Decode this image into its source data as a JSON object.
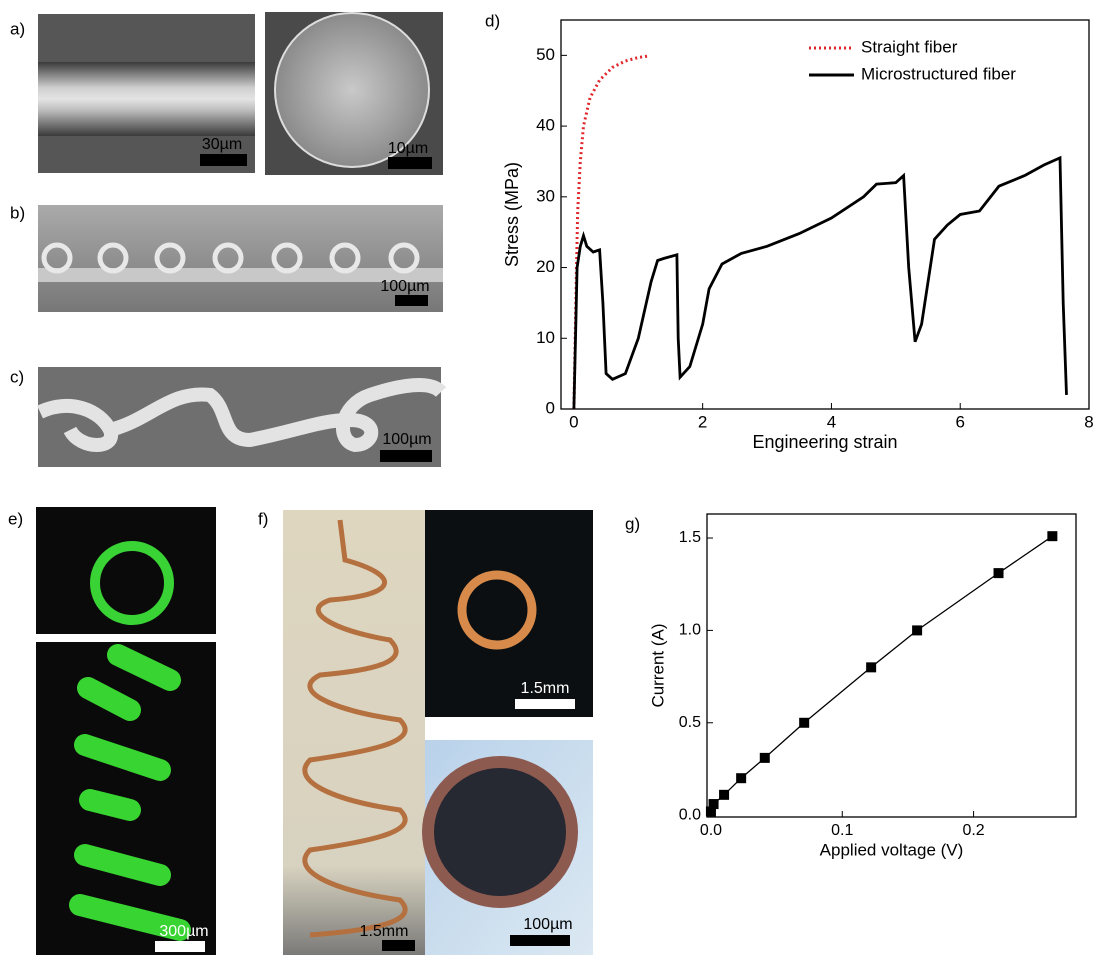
{
  "panels": {
    "a": {
      "label": "a)",
      "scale_left": "30µm",
      "scale_right": "10µm"
    },
    "b": {
      "label": "b)",
      "scale": "100µm"
    },
    "c": {
      "label": "c)",
      "scale": "100µm"
    },
    "e": {
      "label": "e)",
      "scale": "300µm"
    },
    "f": {
      "label": "f)",
      "scale_left": "1.5mm",
      "scale_top": "1.5mm",
      "scale_bottom": "100µm"
    }
  },
  "chart_data": [
    {
      "type": "line",
      "label": "d)",
      "x_label": "Engineering strain",
      "y_label": "Stress (MPa)",
      "xlim": [
        -0.2,
        8
      ],
      "ylim": [
        0,
        55
      ],
      "xticks": [
        0,
        2,
        4,
        6,
        8
      ],
      "yticks": [
        0,
        10,
        20,
        30,
        40,
        50
      ],
      "legend": "upper right",
      "series": [
        {
          "name": "Straight fiber",
          "color": "#e0252b",
          "style": "dotted",
          "x": [
            0,
            0.02,
            0.04,
            0.06,
            0.1,
            0.15,
            0.25,
            0.4,
            0.6,
            0.8,
            1,
            1.15
          ],
          "values": [
            0,
            10,
            20,
            28,
            35,
            40,
            44,
            46.5,
            48.3,
            49.2,
            49.7,
            49.9
          ]
        },
        {
          "name": "Microstructured fiber",
          "color": "#000000",
          "style": "solid",
          "x": [
            0,
            0.05,
            0.1,
            0.15,
            0.2,
            0.3,
            0.4,
            0.45,
            0.5,
            0.6,
            0.8,
            1.0,
            1.2,
            1.3,
            1.4,
            1.6,
            1.62,
            1.65,
            1.8,
            2.0,
            2.1,
            2.3,
            2.6,
            3.0,
            3.5,
            4.0,
            4.5,
            4.7,
            5.0,
            5.12,
            5.2,
            5.3,
            5.4,
            5.6,
            5.8,
            6.0,
            6.3,
            6.6,
            7.0,
            7.3,
            7.55,
            7.6,
            7.65
          ],
          "values": [
            0,
            20,
            23,
            24.5,
            23,
            22.2,
            22.5,
            15,
            5,
            4.2,
            5,
            10,
            18,
            21,
            21.3,
            21.8,
            10,
            4.5,
            6,
            12,
            17,
            20.5,
            22,
            23,
            24.8,
            27,
            30,
            31.8,
            32,
            33,
            20,
            9.5,
            12,
            24,
            26,
            27.5,
            28,
            31.5,
            33,
            34.5,
            35.5,
            15,
            2
          ]
        }
      ]
    },
    {
      "type": "line",
      "label": "g)",
      "x_label": "Applied voltage (V)",
      "y_label": "Current (A)",
      "markers": "square",
      "xlim": [
        -0.003,
        0.278
      ],
      "ylim": [
        -0.01,
        1.63
      ],
      "xticks": [
        {
          "value": 0,
          "label": "0.0"
        },
        0.1,
        0.2
      ],
      "yticks": [
        {
          "value": 0,
          "label": "0.0"
        },
        0.5,
        {
          "value": 1,
          "label": "1.0"
        },
        1.5
      ],
      "series": [
        {
          "color": "#000000",
          "style": "solid",
          "x": [
            0,
            0.002,
            0.01,
            0.023,
            0.041,
            0.071,
            0.122,
            0.157,
            0.219,
            0.26
          ],
          "values": [
            0.02,
            0.06,
            0.11,
            0.2,
            0.31,
            0.5,
            0.8,
            1.0,
            1.31,
            1.51
          ]
        }
      ]
    }
  ]
}
